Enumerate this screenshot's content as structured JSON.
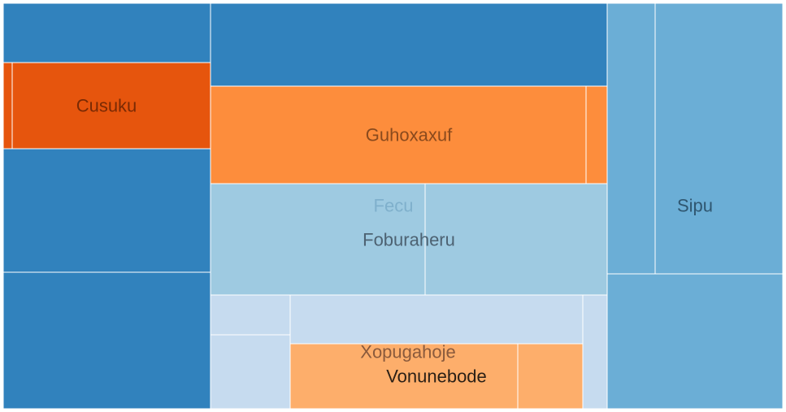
{
  "chart_data": {
    "type": "treemap",
    "colors": {
      "blue": "#3182bd",
      "orange_dark": "#e6550d",
      "orange": "#fd8d3c",
      "light_blue": "#9ecae1",
      "pale_blue": "#c6dbef",
      "light_orange": "#fdae6b",
      "mid_blue": "#6baed6"
    },
    "tiles": [
      {
        "id": "b1",
        "color": "blue"
      },
      {
        "id": "o1",
        "color": "orange_dark"
      },
      {
        "id": "o2",
        "color": "orange_dark"
      },
      {
        "id": "b2",
        "color": "blue"
      },
      {
        "id": "b3",
        "color": "blue"
      },
      {
        "id": "b4",
        "color": "blue"
      },
      {
        "id": "o3",
        "color": "orange"
      },
      {
        "id": "o4",
        "color": "orange"
      },
      {
        "id": "lb1",
        "color": "light_blue"
      },
      {
        "id": "lb2",
        "color": "light_blue"
      },
      {
        "id": "pb1",
        "color": "pale_blue"
      },
      {
        "id": "pb2",
        "color": "pale_blue"
      },
      {
        "id": "pb3",
        "color": "pale_blue"
      },
      {
        "id": "pb4",
        "color": "pale_blue"
      },
      {
        "id": "lo1",
        "color": "light_orange"
      },
      {
        "id": "lo2",
        "color": "light_orange"
      },
      {
        "id": "mb1",
        "color": "mid_blue"
      },
      {
        "id": "mb2",
        "color": "mid_blue"
      },
      {
        "id": "mb3",
        "color": "mid_blue"
      }
    ],
    "labels": [
      {
        "id": "cusuku",
        "text": "Cusuku",
        "tile": "o2",
        "color": "#7a2a04"
      },
      {
        "id": "guhoxaxuf",
        "text": "Guhoxaxuf",
        "tile": "o3",
        "color": "#8a4a1d"
      },
      {
        "id": "fecu",
        "text": "Fecu",
        "tile": "lb1",
        "color": "#7fb0cc"
      },
      {
        "id": "foburaheru",
        "text": "Foburaheru",
        "tile": "lb1",
        "color": "#4d6272"
      },
      {
        "id": "xopugahoje",
        "text": "Xopugahoje",
        "tile": "lo1",
        "color": "#8a5a3c"
      },
      {
        "id": "vonunebode",
        "text": "Vonunebode",
        "tile": "lo1",
        "color": "#2b2016"
      },
      {
        "id": "sipu",
        "text": "Sipu",
        "tile": "mb2",
        "color": "#2f5670"
      }
    ]
  }
}
